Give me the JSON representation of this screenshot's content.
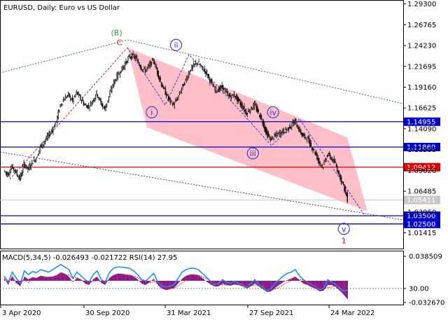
{
  "chart_data": {
    "type": "line",
    "title": "EURUSD, Daily:  Euro vs US Dollar",
    "price_axis": {
      "min": 0.995,
      "max": 1.2935,
      "ticks": [
        "1.29300",
        "1.26765",
        "1.24230",
        "1.21695",
        "1.19160",
        "1.16625",
        "1.14090",
        "1.11555",
        "1.09020",
        "1.06485",
        "1.03950",
        "1.01415"
      ]
    },
    "date_axis": {
      "labels": [
        "3 Apr 2020",
        "30 Sep 2020",
        "31 Mar 2021",
        "27 Sep 2021",
        "24 Mar 2022"
      ]
    },
    "horizontal_levels": [
      {
        "price": 1.14955,
        "label": "1.14955",
        "color": "#0000cc"
      },
      {
        "price": 1.11869,
        "label": "1.11869",
        "color": "#0000cc"
      },
      {
        "price": 1.09412,
        "label": "1.09412",
        "color": "#e00000"
      },
      {
        "price": 1.035,
        "label": "1.03500",
        "color": "#0000cc"
      },
      {
        "price": 1.025,
        "label": "1.02500",
        "color": "#0000cc"
      }
    ],
    "current_price": {
      "price": 1.05411,
      "label": "1.05411"
    },
    "series": [
      {
        "price": [
          1.09,
          1.085,
          1.095,
          1.088,
          1.08,
          1.098,
          1.092,
          1.1,
          1.105,
          1.118,
          1.125,
          1.132,
          1.14,
          1.15,
          1.17,
          1.178,
          1.182,
          1.175,
          1.185,
          1.178,
          1.17,
          1.168,
          1.175,
          1.185,
          1.172,
          1.165,
          1.18,
          1.195,
          1.205,
          1.212,
          1.22,
          1.228,
          1.23,
          1.225,
          1.215,
          1.212,
          1.218,
          1.225,
          1.21,
          1.195,
          1.185,
          1.175,
          1.17,
          1.178,
          1.19,
          1.2,
          1.212,
          1.218,
          1.222,
          1.215,
          1.21,
          1.2,
          1.19,
          1.188,
          1.192,
          1.185,
          1.18,
          1.182,
          1.175,
          1.168,
          1.16,
          1.165,
          1.17,
          1.16,
          1.15,
          1.135,
          1.128,
          1.132,
          1.135,
          1.138,
          1.14,
          1.145,
          1.15,
          1.14,
          1.132,
          1.13,
          1.12,
          1.112,
          1.1,
          1.095,
          1.11,
          1.105,
          1.098,
          1.085,
          1.072,
          1.055
        ]
      }
    ],
    "wave_labels": [
      {
        "text": "(B)",
        "color": "#3a9a3a",
        "date_index": 27.8,
        "price": 1.258
      },
      {
        "text": "C",
        "color": "#b22222",
        "date_index": 28.5,
        "price": 1.246
      },
      {
        "text": "i",
        "color": "#2a34c8",
        "date_index": 36.5,
        "price": 1.161,
        "circled": true
      },
      {
        "text": "ii",
        "color": "#2a34c8",
        "date_index": 42.5,
        "price": 1.243,
        "circled": true
      },
      {
        "text": "iii",
        "color": "#2a34c8",
        "date_index": 61.5,
        "price": 1.111,
        "circled": true
      },
      {
        "text": "iv",
        "color": "#2a34c8",
        "date_index": 66.5,
        "price": 1.161,
        "circled": true
      },
      {
        "text": "v",
        "color": "#2a34c8",
        "date_index": 84.0,
        "price": 1.019,
        "circled": true
      },
      {
        "text": "1",
        "color": "#b22222",
        "date_index": 84.0,
        "price": 1.005
      }
    ],
    "indicator": {
      "title": "MACD(5,34,5) -0.026493 -0.021722 RSI(14) 27.95",
      "ticks": [
        "0.038509",
        "30.00",
        "-0.032670"
      ],
      "min": -0.03267,
      "max": 0.038509,
      "macd": [
        0.004,
        -0.006,
        0.007,
        -0.003,
        -0.008,
        0.006,
        0.002,
        0.005,
        0.004,
        0.007,
        0.006,
        0.005,
        0.006,
        0.008,
        0.012,
        0.01,
        0.006,
        -0.002,
        0.004,
        0.002,
        -0.004,
        -0.006,
        0.002,
        0.006,
        -0.003,
        -0.006,
        0.004,
        0.008,
        0.01,
        0.01,
        0.009,
        0.008,
        0.006,
        0.002,
        -0.004,
        -0.006,
        -0.002,
        0.003,
        -0.006,
        -0.011,
        -0.013,
        -0.012,
        -0.01,
        -0.004,
        0.003,
        0.007,
        0.009,
        0.009,
        0.008,
        0.004,
        -0.001,
        -0.005,
        -0.008,
        -0.008,
        -0.004,
        -0.006,
        -0.007,
        -0.005,
        -0.006,
        -0.008,
        -0.011,
        -0.008,
        -0.004,
        -0.008,
        -0.012,
        -0.016,
        -0.015,
        -0.01,
        -0.006,
        -0.002,
        0.001,
        0.003,
        0.006,
        0.001,
        -0.004,
        -0.006,
        -0.009,
        -0.011,
        -0.015,
        -0.014,
        -0.006,
        -0.006,
        -0.009,
        -0.014,
        -0.02,
        -0.0265
      ],
      "rsi": [
        50,
        40,
        56,
        46,
        38,
        58,
        52,
        57,
        55,
        60,
        58,
        56,
        60,
        64,
        68,
        64,
        60,
        46,
        56,
        50,
        44,
        40,
        52,
        58,
        44,
        40,
        55,
        62,
        64,
        64,
        63,
        62,
        58,
        52,
        44,
        42,
        48,
        54,
        40,
        34,
        32,
        34,
        36,
        46,
        56,
        60,
        62,
        62,
        60,
        54,
        48,
        42,
        36,
        38,
        44,
        40,
        38,
        42,
        38,
        36,
        32,
        38,
        44,
        36,
        32,
        26,
        30,
        38,
        44,
        50,
        54,
        56,
        60,
        50,
        44,
        40,
        36,
        34,
        28,
        30,
        44,
        40,
        36,
        30,
        26,
        27.95
      ]
    }
  }
}
